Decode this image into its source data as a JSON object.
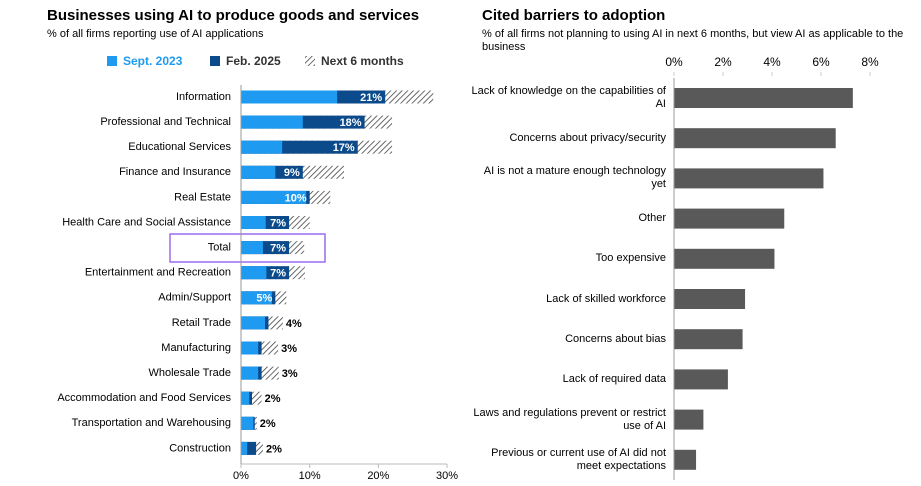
{
  "chart_data": [
    {
      "type": "bar",
      "title": "Businesses using AI to produce goods and services",
      "subtitle": "% of all firms reporting use of AI applications",
      "categories": [
        "Information",
        "Professional and Technical",
        "Educational Services",
        "Finance and Insurance",
        "Real Estate",
        "Health Care and Social Assistance",
        "Total",
        "Entertainment and Recreation",
        "Admin/Support",
        "Retail Trade",
        "Manufacturing",
        "Wholesale Trade",
        "Accommodation and Food Services",
        "Transportation and Warehousing",
        "Construction"
      ],
      "series": [
        {
          "name": "Sept. 2023",
          "color": "#1e9bf0",
          "values": [
            14,
            9,
            6,
            5,
            9.5,
            3.6,
            3.2,
            3.7,
            4.5,
            3.5,
            2.5,
            2.5,
            1.2,
            1.8,
            0.9
          ]
        },
        {
          "name": "Feb. 2025",
          "color": "#0b4a8b",
          "values": [
            21,
            18,
            17,
            9,
            10,
            7,
            7,
            7,
            5,
            4,
            3,
            3,
            1.6,
            2,
            2.2
          ],
          "value_labels": [
            "21%",
            "18%",
            "17%",
            "9%",
            "10%",
            "7%",
            "7%",
            "7%",
            "5%",
            "4%",
            "3%",
            "3%",
            "2%",
            "2%",
            "2%"
          ]
        },
        {
          "name": "Next 6 months",
          "color": "#555555",
          "pattern": "hatch",
          "values": [
            28,
            22,
            22,
            15,
            13,
            10,
            9.2,
            9.3,
            6.6,
            6.1,
            5.4,
            5.5,
            3,
            2.3,
            3.2
          ]
        }
      ],
      "xlim": [
        0,
        30
      ],
      "xticks": [
        {
          "value": 0,
          "label": "0%"
        },
        {
          "value": 10,
          "label": "10%"
        },
        {
          "value": 20,
          "label": "20%"
        },
        {
          "value": 30,
          "label": "30%"
        }
      ]
    },
    {
      "type": "bar",
      "title": "Cited barriers to adoption",
      "subtitle": "% of all firms not planning to using AI in next 6 months, but view AI as applicable to the business",
      "categories": [
        "Lack of knowledge on the capabilities of AI",
        "Concerns about privacy/security",
        "AI is not a mature enough technology yet",
        "Other",
        "Too expensive",
        "Lack of skilled workforce",
        "Concerns about bias",
        "Lack of required data",
        "Laws and regulations prevent or restrict use of AI",
        "Previous or current use of AI did not meet expectations"
      ],
      "values": [
        7.3,
        6.6,
        6.1,
        4.5,
        4.1,
        2.9,
        2.8,
        2.2,
        1.2,
        0.9
      ],
      "color": "#595959",
      "xlim": [
        0,
        8
      ],
      "xticks": [
        {
          "value": 0,
          "label": "0%"
        },
        {
          "value": 2,
          "label": "2%"
        },
        {
          "value": 4,
          "label": "4%"
        },
        {
          "value": 6,
          "label": "6%"
        },
        {
          "value": 8,
          "label": "8%"
        }
      ]
    }
  ]
}
